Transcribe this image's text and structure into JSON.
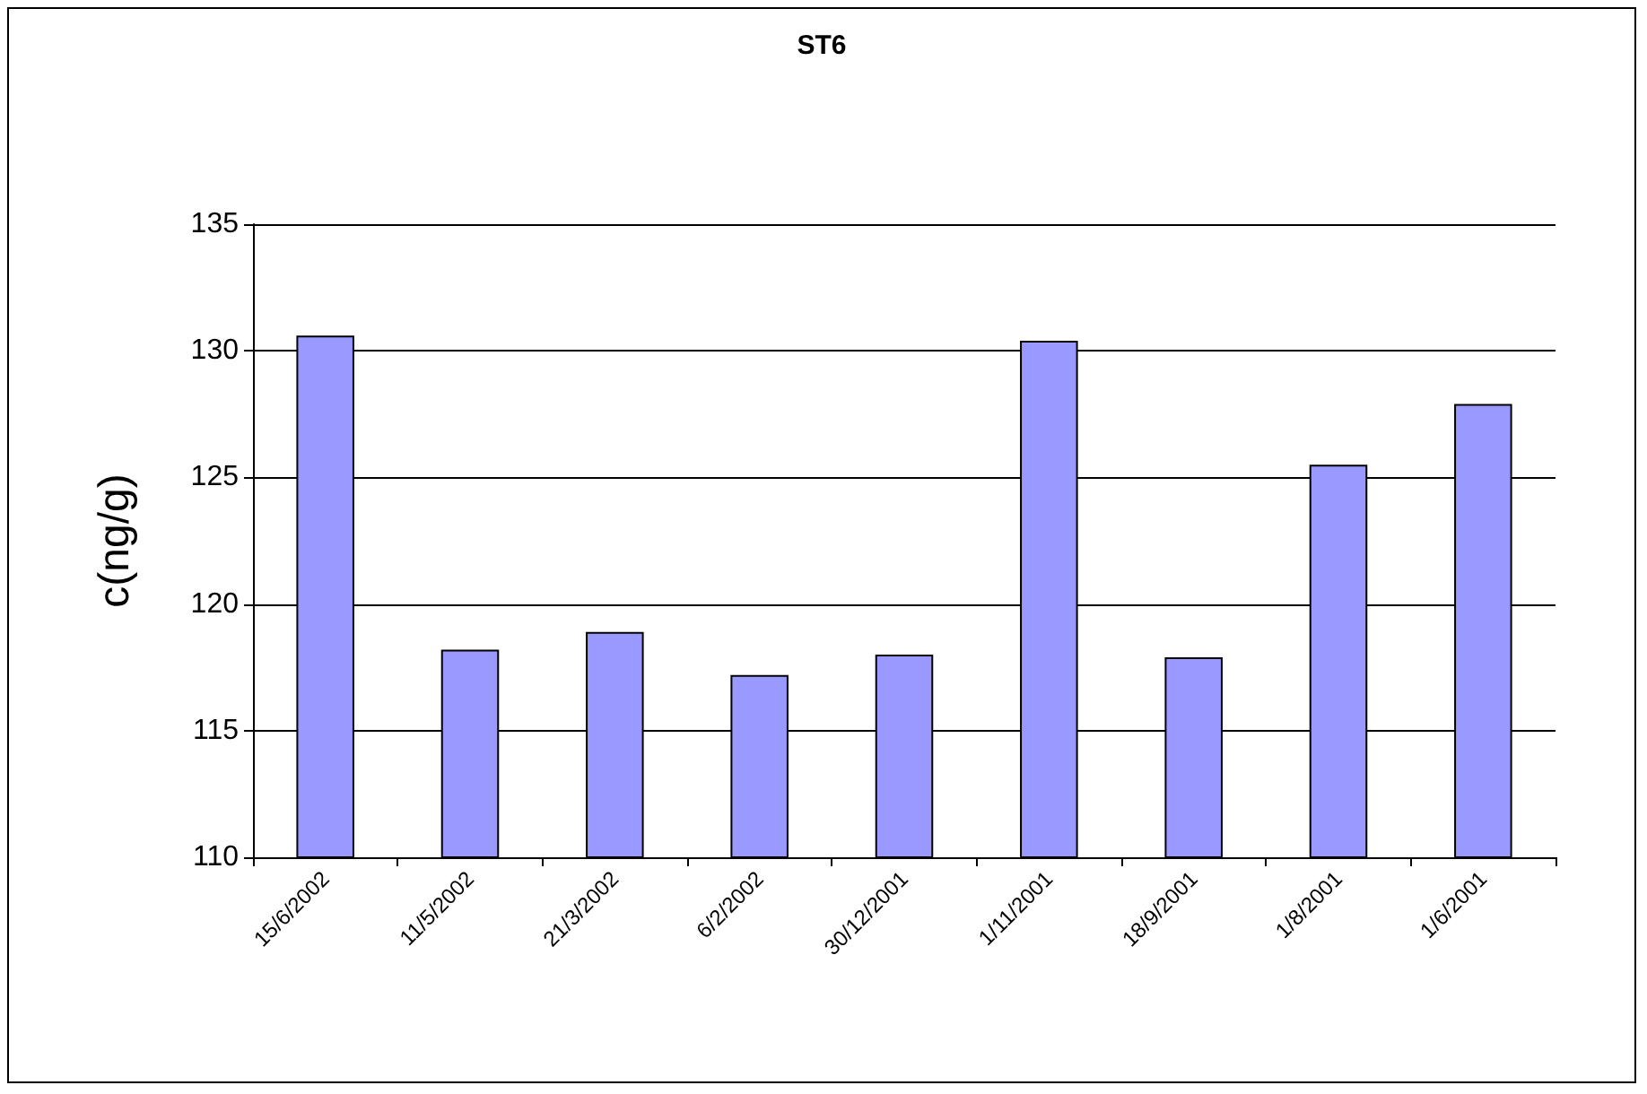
{
  "chart_data": {
    "type": "bar",
    "title": "ST6",
    "ylabel": "c(ng/g)",
    "categories": [
      "15/6/2002",
      "11/5/2002",
      "21/3/2002",
      "6/2/2002",
      "30/12/2001",
      "1/11/2001",
      "18/9/2001",
      "1/8/2001",
      "1/6/2001"
    ],
    "values": [
      130.6,
      118.2,
      118.9,
      117.2,
      118.0,
      130.4,
      117.9,
      125.5,
      127.9
    ],
    "color": "#9999ff",
    "ylim": [
      110,
      135
    ],
    "yticks": [
      110,
      115,
      120,
      125,
      130,
      135
    ],
    "grid": "y"
  }
}
